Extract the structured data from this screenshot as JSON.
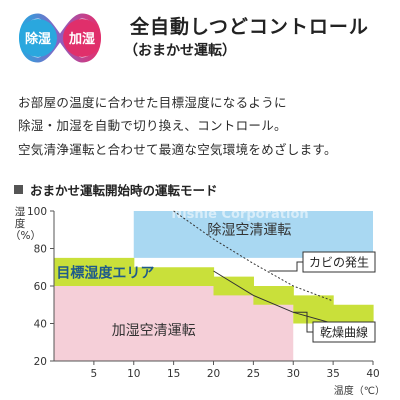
{
  "logo": {
    "left": "除湿",
    "right": "加湿"
  },
  "header": {
    "title": "全自動しつどコントロール",
    "subtitle": "（おまかせ運転）"
  },
  "description": [
    "お部屋の温度に合わせた目標湿度になるように",
    "除湿・加湿を自動で切り換え、コントロール。",
    "空気清浄運転と合わせて最適な空気環境をめざします。"
  ],
  "section": {
    "title": "おまかせ運転開始時の運転モード"
  },
  "watermark": "Nishie Corporation",
  "colors": {
    "dehumidify": "#a9d8f2",
    "humidify": "#f5cfd8",
    "target": "#c9e03a",
    "axis": "#555555"
  },
  "chart_data": {
    "type": "area",
    "xlabel": "温度（℃）",
    "ylabel": "湿度（%）",
    "xlim": [
      0,
      40
    ],
    "ylim": [
      20,
      100
    ],
    "xticks": [
      5,
      10,
      15,
      20,
      25,
      30,
      35,
      40
    ],
    "yticks": [
      20,
      40,
      60,
      80,
      100
    ],
    "regions": [
      {
        "name": "除湿空清運転",
        "x_range": [
          10,
          40
        ],
        "y_range": [
          75,
          100
        ]
      },
      {
        "name": "目標湿度エリア",
        "steps": [
          {
            "x": [
              0,
              10
            ],
            "y": [
              60,
              75
            ]
          },
          {
            "x": [
              10,
              20
            ],
            "y": [
              60,
              70
            ]
          },
          {
            "x": [
              20,
              25
            ],
            "y": [
              55,
              65
            ]
          },
          {
            "x": [
              25,
              30
            ],
            "y": [
              50,
              60
            ]
          },
          {
            "x": [
              30,
              35
            ],
            "y": [
              40,
              55
            ]
          },
          {
            "x": [
              35,
              40
            ],
            "y": [
              35,
              50
            ]
          }
        ]
      },
      {
        "name": "加湿空清運転",
        "x_range": [
          0,
          30
        ],
        "y_range": [
          20,
          60
        ]
      }
    ],
    "annotations": [
      "カビの発生",
      "乾燥曲線"
    ],
    "curves": [
      {
        "name": "カビの発生",
        "points": [
          [
            15,
            100
          ],
          [
            20,
            85
          ],
          [
            25,
            72
          ],
          [
            30,
            60
          ],
          [
            35,
            52
          ]
        ]
      },
      {
        "name": "乾燥曲線",
        "points": [
          [
            20,
            68
          ],
          [
            25,
            55
          ],
          [
            30,
            46
          ],
          [
            35,
            40
          ]
        ]
      }
    ]
  }
}
